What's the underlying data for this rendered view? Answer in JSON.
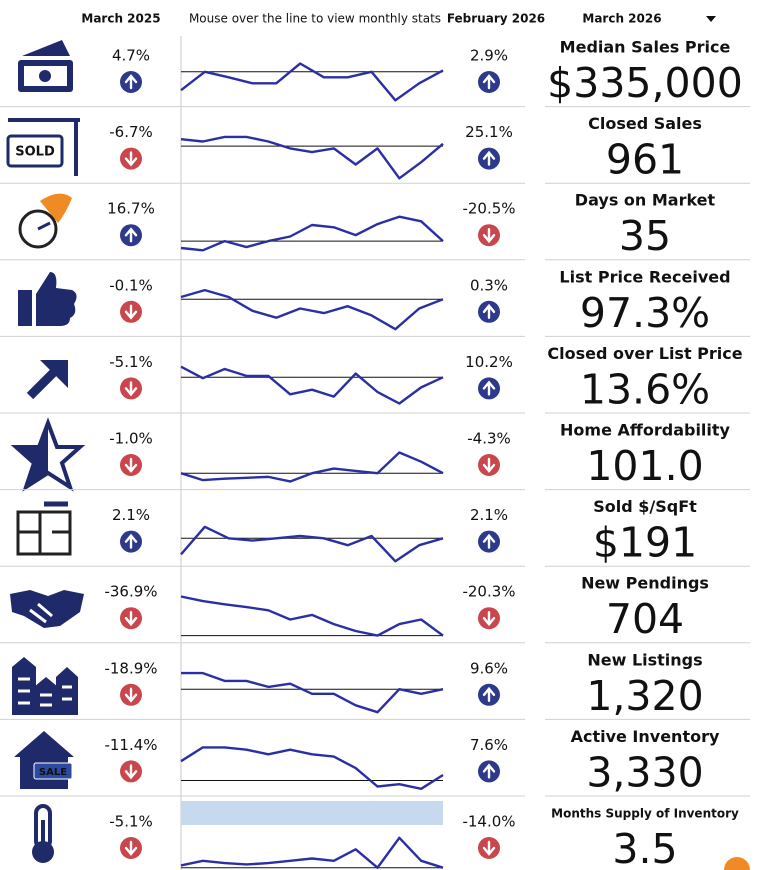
{
  "header": {
    "col1": "March 2025",
    "col2": "Mouse over the line to view monthly stats",
    "col3": "February 2026",
    "col4": "March 2026"
  },
  "rows": [
    {
      "label": "Median Sales Price",
      "value": "$335,000",
      "change_year": "4.7%",
      "arrow_year": "up",
      "change_month": "2.9%",
      "arrow_month": "up",
      "trend": [
        30,
        70,
        58,
        45,
        45,
        88,
        58,
        58,
        70,
        8,
        45,
        73
      ],
      "trend_baseline": 70
    },
    {
      "label": "Closed Sales",
      "value": "961",
      "change_year": "-6.7%",
      "arrow_year": "down",
      "change_month": "25.1%",
      "arrow_month": "up",
      "trend": [
        90,
        85,
        95,
        95,
        85,
        70,
        62,
        70,
        35,
        70,
        5,
        40,
        80
      ],
      "trend_baseline": 75
    },
    {
      "label": "Days on Market",
      "value": "35",
      "change_year": "16.7%",
      "arrow_year": "up",
      "change_month": "-20.5%",
      "arrow_month": "down",
      "trend": [
        20,
        15,
        35,
        22,
        35,
        45,
        70,
        65,
        48,
        72,
        88,
        78,
        35
      ],
      "trend_baseline": 35
    },
    {
      "label": "List Price Received",
      "value": "97.3%",
      "change_year": "-0.1%",
      "arrow_year": "down",
      "change_month": "0.3%",
      "arrow_month": "up",
      "trend": [
        80,
        95,
        80,
        50,
        35,
        55,
        45,
        60,
        40,
        10,
        55,
        75
      ],
      "trend_baseline": 75
    },
    {
      "label": "Closed over List Price",
      "value": "13.6%",
      "change_year": "-5.1%",
      "arrow_year": "down",
      "change_month": "10.2%",
      "arrow_month": "up",
      "trend": [
        95,
        70,
        90,
        75,
        75,
        35,
        45,
        30,
        80,
        40,
        15,
        50,
        72
      ],
      "trend_baseline": 72
    },
    {
      "label": "Home Affordability",
      "value": "101.0",
      "change_year": "-1.0%",
      "arrow_year": "down",
      "change_month": "-4.3%",
      "arrow_month": "down",
      "trend": [
        30,
        15,
        18,
        20,
        22,
        12,
        30,
        40,
        35,
        30,
        75,
        55,
        30
      ],
      "trend_baseline": 30
    },
    {
      "label": "Sold $/SqFt",
      "value": "$191",
      "change_year": "2.1%",
      "arrow_year": "up",
      "change_month": "2.1%",
      "arrow_month": "up",
      "trend": [
        20,
        80,
        55,
        50,
        55,
        60,
        55,
        40,
        60,
        5,
        40,
        55
      ],
      "trend_baseline": 55
    },
    {
      "label": "New Pendings",
      "value": "704",
      "change_year": "-36.9%",
      "arrow_year": "down",
      "change_month": "-20.3%",
      "arrow_month": "down",
      "trend": [
        95,
        85,
        78,
        72,
        65,
        45,
        55,
        35,
        20,
        10,
        35,
        45,
        10
      ],
      "trend_baseline": 10
    },
    {
      "label": "New Listings",
      "value": "1,320",
      "change_year": "-18.9%",
      "arrow_year": "down",
      "change_month": "9.6%",
      "arrow_month": "up",
      "trend": [
        95,
        95,
        78,
        78,
        65,
        72,
        50,
        50,
        25,
        10,
        60,
        50,
        60
      ],
      "trend_baseline": 60
    },
    {
      "label": "Active Inventory",
      "value": "3,330",
      "change_year": "-11.4%",
      "arrow_year": "down",
      "change_month": "7.6%",
      "arrow_month": "up",
      "trend": [
        70,
        100,
        100,
        95,
        85,
        95,
        85,
        80,
        55,
        15,
        20,
        10,
        40
      ],
      "trend_baseline": 28
    },
    {
      "label": "Months Supply of Inventory",
      "value": "3.5",
      "change_year": "-5.1%",
      "arrow_year": "down",
      "change_month": "-14.0%",
      "arrow_month": "down",
      "trend": [
        10,
        20,
        15,
        12,
        15,
        20,
        25,
        20,
        45,
        5,
        70,
        20,
        5
      ],
      "trend_baseline": 5
    }
  ]
}
